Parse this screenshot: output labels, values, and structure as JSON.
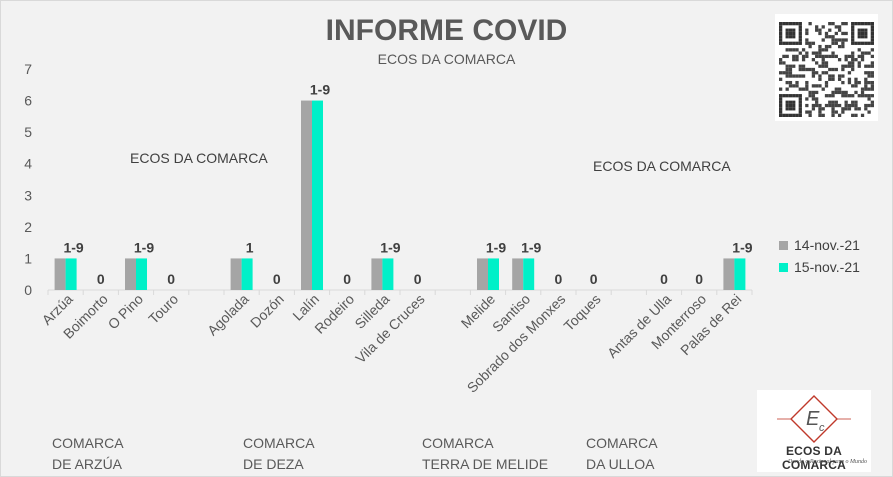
{
  "title": "INFORME COVID",
  "subtitle": "ECOS DA COMARCA",
  "watermarks": [
    "ECOS DA COMARCA",
    "ECOS DA COMARCA"
  ],
  "logo": {
    "text": "ECOS DA COMARCA",
    "tagline": "Donde o Rexional para o Mundo"
  },
  "groups": [
    {
      "line1": "COMARCA",
      "line2": "DE ARZÚA"
    },
    {
      "line1": "COMARCA",
      "line2": "DE DEZA"
    },
    {
      "line1": "COMARCA",
      "line2": "TERRA DE MELIDE"
    },
    {
      "line1": "COMARCA",
      "line2": "DA ULLOA"
    }
  ],
  "colors": {
    "series1": "#a5a5a5",
    "series2": "#00f0c8"
  },
  "chart_data": {
    "type": "bar",
    "title": "INFORME COVID",
    "subtitle": "ECOS DA COMARCA",
    "categories": [
      "Arzúa",
      "Boimorto",
      "O Pino",
      "Touro",
      "",
      "Agolada",
      "Dozón",
      "Lalín",
      "Rodeiro",
      "Silleda",
      "Vila de Cruces",
      "",
      "Melide",
      "Santiso",
      "Sobrado dos Monxes",
      "Toques",
      "",
      "Antas de Ulla",
      "Monterroso",
      "Palas de Rei"
    ],
    "series": [
      {
        "name": "14-nov.-21",
        "values": [
          1,
          0,
          1,
          0,
          null,
          1,
          0,
          6,
          0,
          1,
          0,
          null,
          1,
          1,
          0,
          0,
          null,
          0,
          0,
          1
        ]
      },
      {
        "name": "15-nov.-21",
        "values": [
          1,
          0,
          1,
          0,
          null,
          1,
          0,
          6,
          0,
          1,
          0,
          null,
          1,
          1,
          0,
          0,
          null,
          0,
          0,
          1
        ]
      }
    ],
    "data_labels": [
      "1-9",
      "0",
      "1-9",
      "0",
      "",
      "1",
      "0",
      "1-9",
      "0",
      "1-9",
      "0",
      "",
      "1-9",
      "1-9",
      "0",
      "0",
      "",
      "0",
      "0",
      "1-9"
    ],
    "yticks": [
      "0",
      "1",
      "2",
      "3",
      "4",
      "5",
      "6",
      "7"
    ],
    "ylim": [
      0,
      7
    ],
    "legend": "right",
    "grid": false
  }
}
